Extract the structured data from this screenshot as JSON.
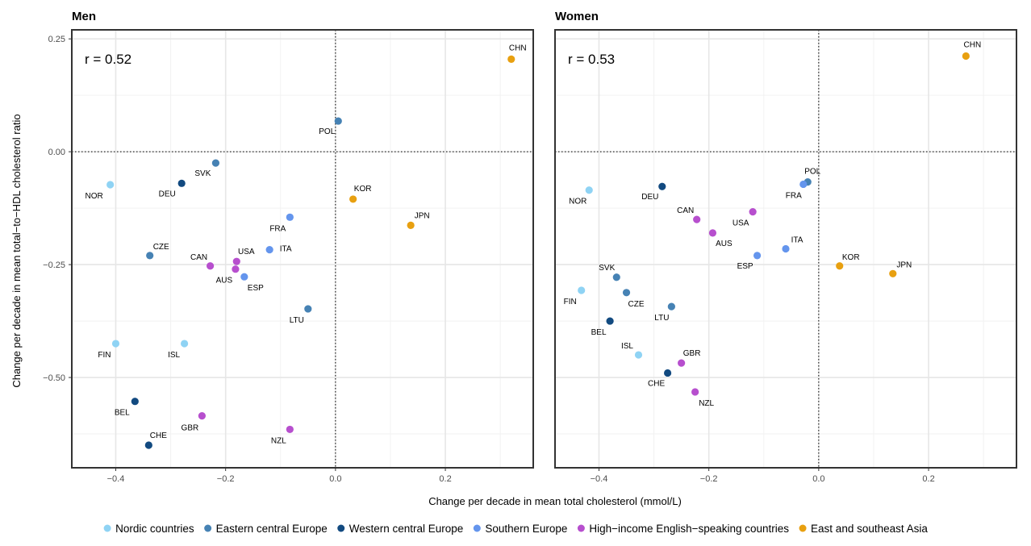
{
  "chart_data": {
    "type": "scatter",
    "xlabel": "Change per decade in mean total cholesterol (mmol/L)",
    "ylabel": "Change per decade in mean total−to−HDL cholesterol ratio",
    "xlim": [
      -0.48,
      0.36
    ],
    "ylim": [
      -0.7,
      0.27
    ],
    "x_ticks": [
      -0.4,
      -0.2,
      0.0,
      0.2
    ],
    "x_tick_labels": [
      "−0.4",
      "−0.2",
      "0.0",
      "0.2"
    ],
    "y_ticks": [
      0.25,
      0.0,
      -0.25,
      -0.5
    ],
    "y_tick_labels": [
      "0.25",
      "0.00",
      "−0.25",
      "−0.50"
    ],
    "reference_lines": {
      "x": 0,
      "y": 0,
      "style": "dotted"
    },
    "grid": true,
    "legend": {
      "position": "bottom",
      "entries": [
        {
          "name": "Nordic countries",
          "color": "#8fd3f4"
        },
        {
          "name": "Eastern central Europe",
          "color": "#4682b4"
        },
        {
          "name": "Western central Europe",
          "color": "#124a80"
        },
        {
          "name": "Southern Europe",
          "color": "#6495ed"
        },
        {
          "name": "High−income English−speaking countries",
          "color": "#b74fce"
        },
        {
          "name": "East and southeast Asia",
          "color": "#e8a010"
        }
      ]
    },
    "panels": [
      {
        "title": "Men",
        "annotation": "r = 0.52",
        "points": [
          {
            "label": "CHN",
            "x": 0.32,
            "y": 0.205,
            "group": 5
          },
          {
            "label": "POL",
            "x": 0.005,
            "y": 0.068,
            "group": 1
          },
          {
            "label": "SVK",
            "x": -0.218,
            "y": -0.025,
            "group": 1
          },
          {
            "label": "NOR",
            "x": -0.41,
            "y": -0.073,
            "group": 0
          },
          {
            "label": "DEU",
            "x": -0.28,
            "y": -0.07,
            "group": 2
          },
          {
            "label": "KOR",
            "x": 0.032,
            "y": -0.105,
            "group": 5
          },
          {
            "label": "JPN",
            "x": 0.137,
            "y": -0.163,
            "group": 5
          },
          {
            "label": "FRA",
            "x": -0.083,
            "y": -0.145,
            "group": 3
          },
          {
            "label": "ITA",
            "x": -0.12,
            "y": -0.217,
            "group": 3
          },
          {
            "label": "CZE",
            "x": -0.338,
            "y": -0.23,
            "group": 1
          },
          {
            "label": "USA",
            "x": -0.18,
            "y": -0.243,
            "group": 4
          },
          {
            "label": "CAN",
            "x": -0.228,
            "y": -0.253,
            "group": 4
          },
          {
            "label": "AUS",
            "x": -0.182,
            "y": -0.26,
            "group": 4
          },
          {
            "label": "ESP",
            "x": -0.166,
            "y": -0.277,
            "group": 3
          },
          {
            "label": "LTU",
            "x": -0.05,
            "y": -0.348,
            "group": 1
          },
          {
            "label": "FIN",
            "x": -0.4,
            "y": -0.425,
            "group": 0
          },
          {
            "label": "ISL",
            "x": -0.275,
            "y": -0.425,
            "group": 0
          },
          {
            "label": "BEL",
            "x": -0.365,
            "y": -0.553,
            "group": 2
          },
          {
            "label": "GBR",
            "x": -0.243,
            "y": -0.585,
            "group": 4
          },
          {
            "label": "NZL",
            "x": -0.083,
            "y": -0.615,
            "group": 4
          },
          {
            "label": "CHE",
            "x": -0.34,
            "y": -0.65,
            "group": 2
          }
        ]
      },
      {
        "title": "Women",
        "annotation": "r = 0.53",
        "points": [
          {
            "label": "CHN",
            "x": 0.268,
            "y": 0.212,
            "group": 5
          },
          {
            "label": "POL",
            "x": -0.02,
            "y": -0.067,
            "group": 1
          },
          {
            "label": "FRA",
            "x": -0.028,
            "y": -0.072,
            "group": 3
          },
          {
            "label": "DEU",
            "x": -0.285,
            "y": -0.077,
            "group": 2
          },
          {
            "label": "NOR",
            "x": -0.418,
            "y": -0.085,
            "group": 0
          },
          {
            "label": "USA",
            "x": -0.12,
            "y": -0.133,
            "group": 4
          },
          {
            "label": "CAN",
            "x": -0.222,
            "y": -0.15,
            "group": 4
          },
          {
            "label": "AUS",
            "x": -0.193,
            "y": -0.18,
            "group": 4
          },
          {
            "label": "ITA",
            "x": -0.06,
            "y": -0.215,
            "group": 3
          },
          {
            "label": "ESP",
            "x": -0.112,
            "y": -0.23,
            "group": 3
          },
          {
            "label": "KOR",
            "x": 0.038,
            "y": -0.253,
            "group": 5
          },
          {
            "label": "JPN",
            "x": 0.135,
            "y": -0.27,
            "group": 5
          },
          {
            "label": "SVK",
            "x": -0.368,
            "y": -0.278,
            "group": 1
          },
          {
            "label": "FIN",
            "x": -0.432,
            "y": -0.307,
            "group": 0
          },
          {
            "label": "CZE",
            "x": -0.35,
            "y": -0.312,
            "group": 1
          },
          {
            "label": "LTU",
            "x": -0.268,
            "y": -0.343,
            "group": 1
          },
          {
            "label": "BEL",
            "x": -0.38,
            "y": -0.375,
            "group": 2
          },
          {
            "label": "ISL",
            "x": -0.328,
            "y": -0.45,
            "group": 0
          },
          {
            "label": "GBR",
            "x": -0.25,
            "y": -0.468,
            "group": 4
          },
          {
            "label": "CHE",
            "x": -0.275,
            "y": -0.49,
            "group": 2
          },
          {
            "label": "NZL",
            "x": -0.225,
            "y": -0.532,
            "group": 4
          }
        ]
      }
    ]
  }
}
